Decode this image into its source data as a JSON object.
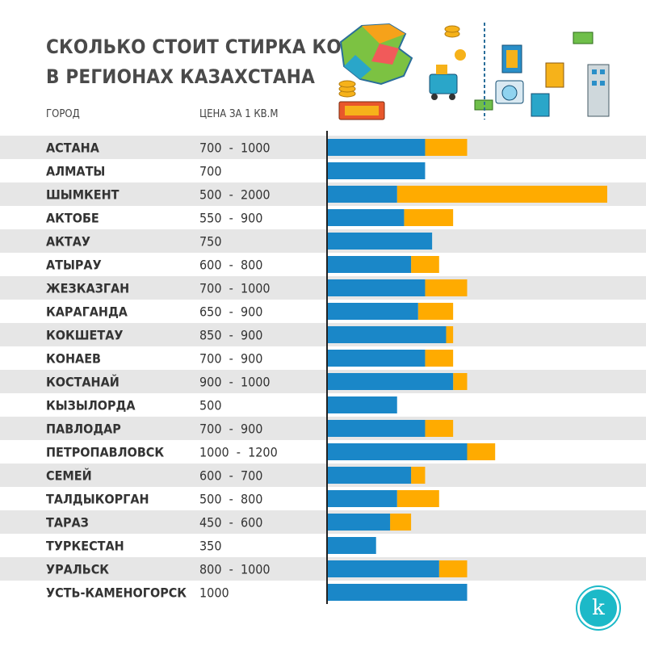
{
  "header": {
    "title_line1": "СКОЛЬКО СТОИТ СТИРКА КОВРОВ",
    "title_line2": "В РЕГИОНАХ КАЗАХСТАНА",
    "col_city": "ГОРОД",
    "col_price": "ЦЕНА ЗА 1 КВ.М"
  },
  "colors": {
    "min_bar": "#1a87c8",
    "max_bar": "#ffab00",
    "stripe": "#e6e6e6",
    "axis": "#222222",
    "logo": "#1cb9c8"
  },
  "logo": {
    "letter": "k"
  },
  "chart_data": {
    "type": "bar",
    "orientation": "horizontal",
    "stacked_range": true,
    "categories": [
      "АСТАНА",
      "АЛМАТЫ",
      "ШЫМКЕНТ",
      "АКТОБЕ",
      "АКТАУ",
      "АТЫРАУ",
      "ЖЕЗКАЗГАН",
      "КАРАГАНДА",
      "КОКШЕТАУ",
      "КОНАЕВ",
      "КОСТАНАЙ",
      "КЫЗЫЛОРДА",
      "ПАВЛОДАР",
      "ПЕТРОПАВЛОВСК",
      "СЕМЕЙ",
      "ТАЛДЫКОРГАН",
      "ТАРАЗ",
      "ТУРКЕСТАН",
      "УРАЛЬСК",
      "УСТЬ-КАМЕНОГОРСК"
    ],
    "price_labels": [
      "700  -  1000",
      "700",
      "500  -  2000",
      "550  -  900",
      "750",
      "600  -  800",
      "700  -  1000",
      "650  -  900",
      "850  -  900",
      "700  -  900",
      "900  -  1000",
      "500",
      "700  -  900",
      "1000  -  1200",
      "600  -  700",
      "500  -  800",
      "450  -  600",
      "350",
      "800  -  1000",
      "1000"
    ],
    "min": [
      700,
      700,
      500,
      550,
      750,
      600,
      700,
      650,
      850,
      700,
      900,
      500,
      700,
      1000,
      600,
      500,
      450,
      350,
      800,
      1000
    ],
    "max": [
      1000,
      700,
      2000,
      900,
      750,
      800,
      1000,
      900,
      900,
      900,
      1000,
      500,
      900,
      1200,
      700,
      800,
      600,
      350,
      1000,
      1000
    ],
    "xlim": [
      0,
      2000
    ],
    "grid": false,
    "legend": "none"
  }
}
